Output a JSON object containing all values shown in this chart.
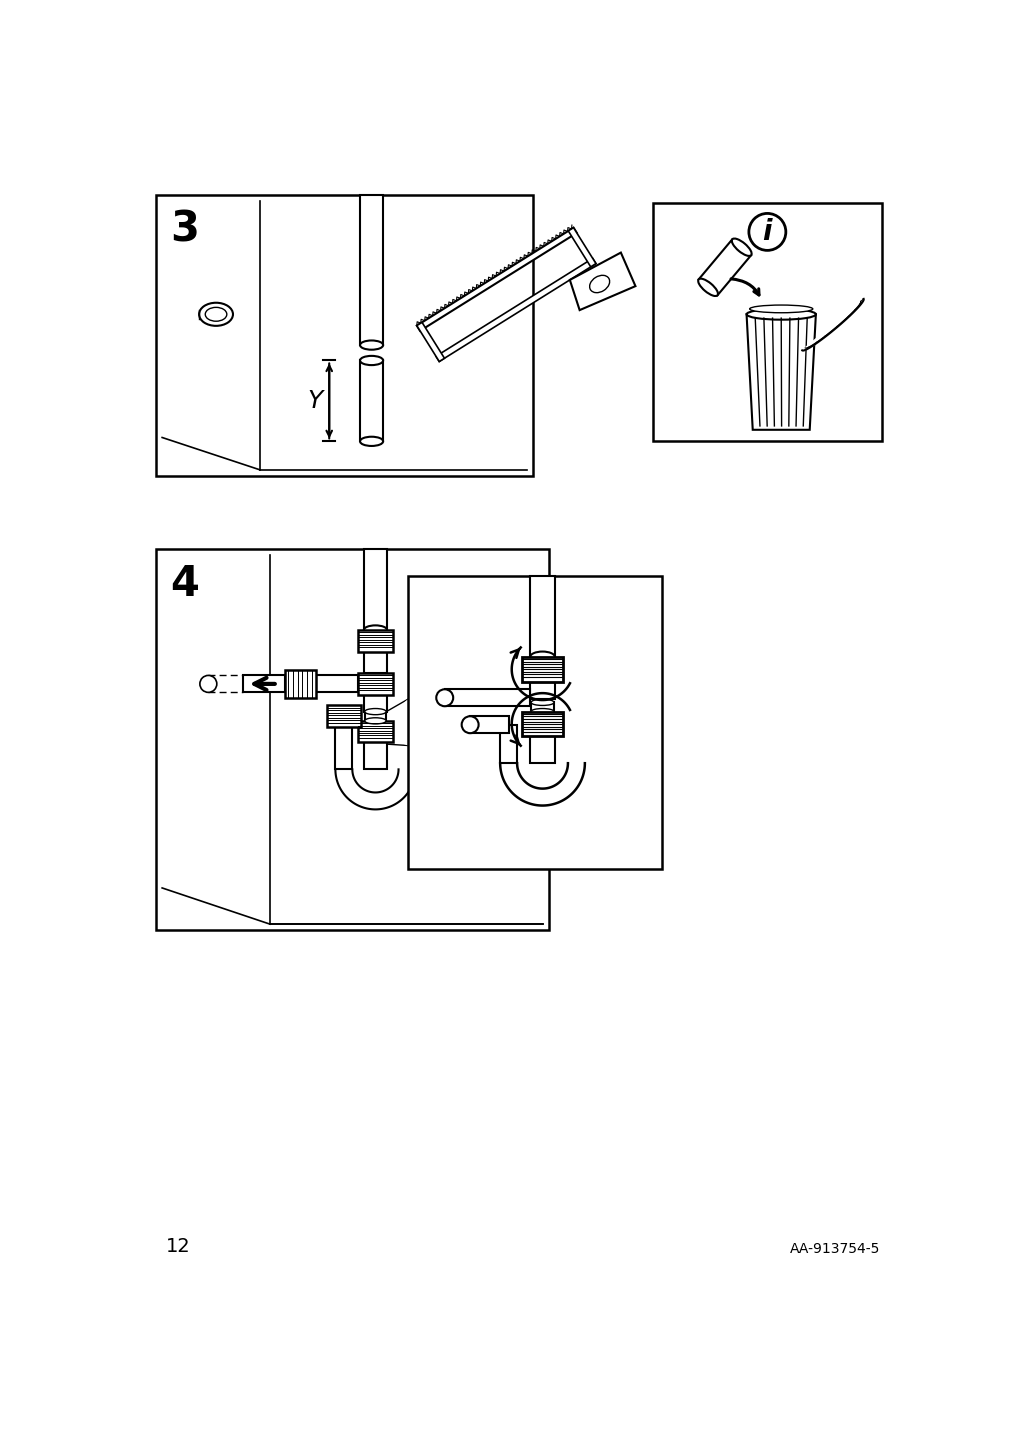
{
  "bg_color": "#ffffff",
  "line_color": "#000000",
  "page_number": "12",
  "doc_number": "AA-913754-5",
  "step3_label": "3",
  "step4_label": "4",
  "info_label": "i"
}
